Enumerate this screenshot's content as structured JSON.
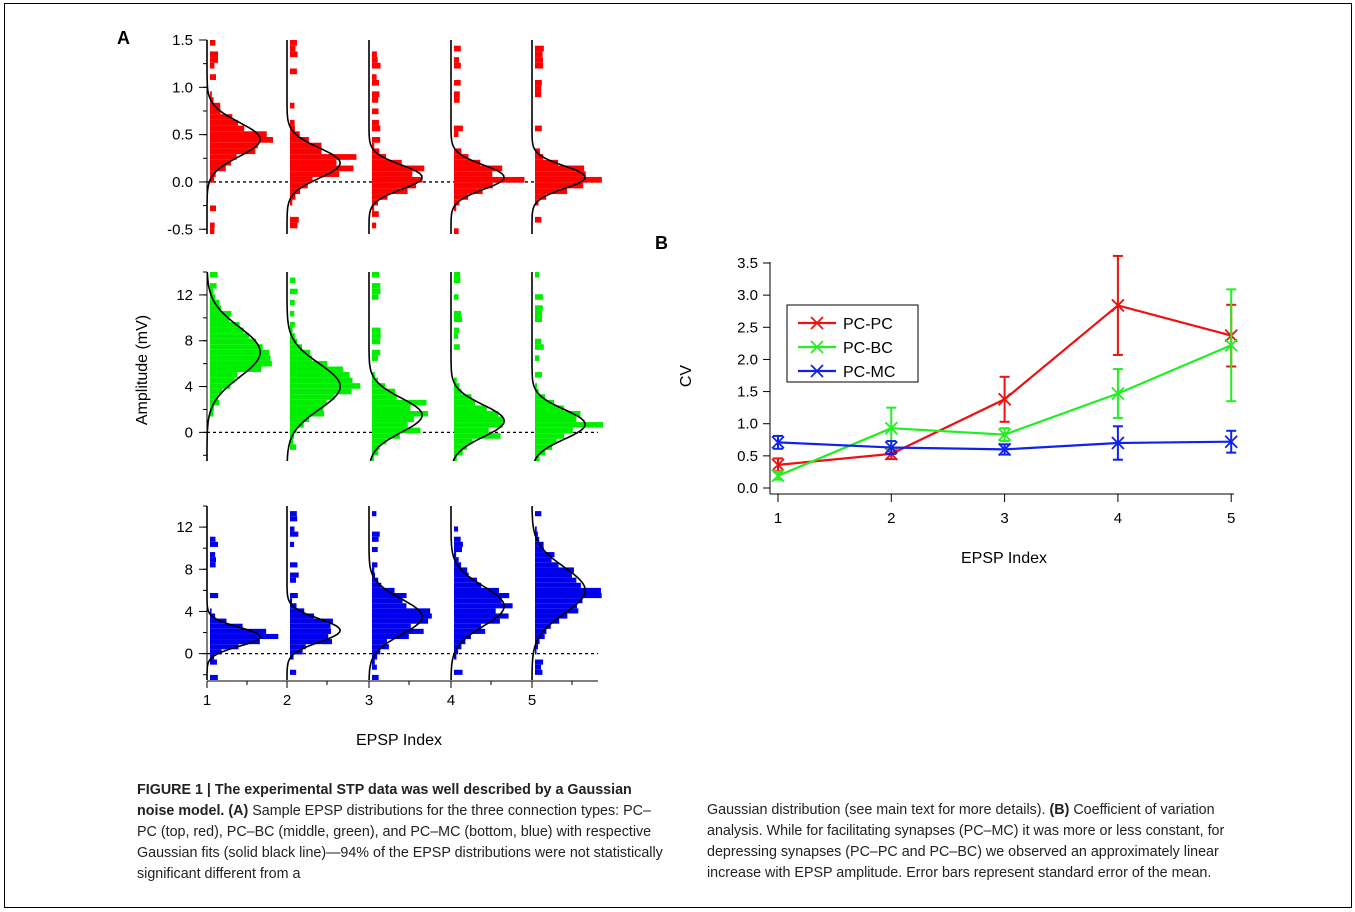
{
  "chart_data": [
    {
      "type": "histogram",
      "panel_label": "A",
      "xlabel": "EPSP Index",
      "ylabel": "Amplitude (mV)",
      "x_ticks": [
        "1",
        "2",
        "3",
        "4",
        "5"
      ],
      "connection_types": [
        "PC-PC",
        "PC-BC",
        "PC-MC"
      ],
      "subpanels": [
        {
          "series": "PC-PC",
          "color": "#ff0000",
          "ylim": [
            -0.55,
            1.5
          ],
          "y_ticks": [
            "1.5",
            "1.0",
            "0.5",
            "0.0",
            "-0.5"
          ],
          "y_tick_values": [
            1.5,
            1.0,
            0.5,
            0.0,
            -0.5
          ],
          "gaussian_fits": [
            {
              "epsp_index": 1,
              "mean": 0.45,
              "sd": 0.18
            },
            {
              "epsp_index": 2,
              "mean": 0.2,
              "sd": 0.16
            },
            {
              "epsp_index": 3,
              "mean": 0.05,
              "sd": 0.13
            },
            {
              "epsp_index": 4,
              "mean": 0.05,
              "sd": 0.13
            },
            {
              "epsp_index": 5,
              "mean": 0.05,
              "sd": 0.12
            }
          ]
        },
        {
          "series": "PC-BC",
          "color": "#00ee00",
          "ylim": [
            -2.5,
            14
          ],
          "y_ticks": [
            "12",
            "8",
            "4",
            "0"
          ],
          "y_tick_values": [
            12,
            8,
            4,
            0
          ],
          "gaussian_fits": [
            {
              "epsp_index": 1,
              "mean": 7.0,
              "sd": 2.2
            },
            {
              "epsp_index": 2,
              "mean": 4.0,
              "sd": 2.0
            },
            {
              "epsp_index": 3,
              "mean": 1.5,
              "sd": 1.5
            },
            {
              "epsp_index": 4,
              "mean": 1.0,
              "sd": 1.4
            },
            {
              "epsp_index": 5,
              "mean": 0.7,
              "sd": 1.3
            }
          ]
        },
        {
          "series": "PC-MC",
          "color": "#0000ee",
          "ylim": [
            -2.5,
            14
          ],
          "y_ticks": [
            "12",
            "8",
            "4",
            "0"
          ],
          "y_tick_values": [
            12,
            8,
            4,
            0
          ],
          "gaussian_fits": [
            {
              "epsp_index": 1,
              "mean": 1.6,
              "sd": 0.9
            },
            {
              "epsp_index": 2,
              "mean": 2.2,
              "sd": 1.1
            },
            {
              "epsp_index": 3,
              "mean": 3.5,
              "sd": 1.7
            },
            {
              "epsp_index": 4,
              "mean": 4.5,
              "sd": 1.9
            },
            {
              "epsp_index": 5,
              "mean": 6.0,
              "sd": 2.2
            }
          ]
        }
      ]
    },
    {
      "type": "line",
      "panel_label": "B",
      "xlabel": "EPSP Index",
      "ylabel": "CV",
      "x": [
        1,
        2,
        3,
        4,
        5
      ],
      "x_ticks": [
        "1",
        "2",
        "3",
        "4",
        "5"
      ],
      "y_ticks": [
        "3.5",
        "3.0",
        "2.5",
        "2.0",
        "1.5",
        "1.0",
        "0.5",
        "0.0"
      ],
      "y_tick_values": [
        3.5,
        3.0,
        2.5,
        2.0,
        1.5,
        1.0,
        0.5,
        0.0
      ],
      "ylim": [
        0,
        3.5
      ],
      "legend_position": "upper-left",
      "series": [
        {
          "name": "PC-PC",
          "color": "#ee1111",
          "values": [
            0.36,
            0.53,
            1.38,
            2.84,
            2.37
          ],
          "errors": [
            0.1,
            0.08,
            0.35,
            0.77,
            0.48
          ]
        },
        {
          "name": "PC-BC",
          "color": "#22ee22",
          "values": [
            0.19,
            0.93,
            0.83,
            1.47,
            2.22
          ],
          "errors": [
            0.06,
            0.32,
            0.1,
            0.38,
            0.87
          ]
        },
        {
          "name": "PC-MC",
          "color": "#1122ee",
          "values": [
            0.71,
            0.63,
            0.6,
            0.7,
            0.72
          ],
          "errors": [
            0.1,
            0.1,
            0.08,
            0.26,
            0.17
          ]
        }
      ]
    }
  ],
  "caption": {
    "figure_label": "FIGURE 1 | The experimental STP data was well described by a Gaussian noise model.",
    "a_label": "(A)",
    "a_text": "Sample EPSP distributions for the three connection types: PC–PC (top, red), PC–BC (middle, green), and PC–MC (bottom, blue) with respective Gaussian fits (solid black line)—94% of the EPSP distributions were not statistically significant different from a",
    "right_text_1": "Gaussian distribution (see main text for more details).",
    "b_label": "(B)",
    "right_text_2": "Coefficient of variation analysis. While for facilitating synapses (PC–MC) it was more or less constant, for depressing synapses (PC–PC and PC–BC) we observed an approximately linear increase with EPSP amplitude. Error bars represent standard error of the mean."
  }
}
